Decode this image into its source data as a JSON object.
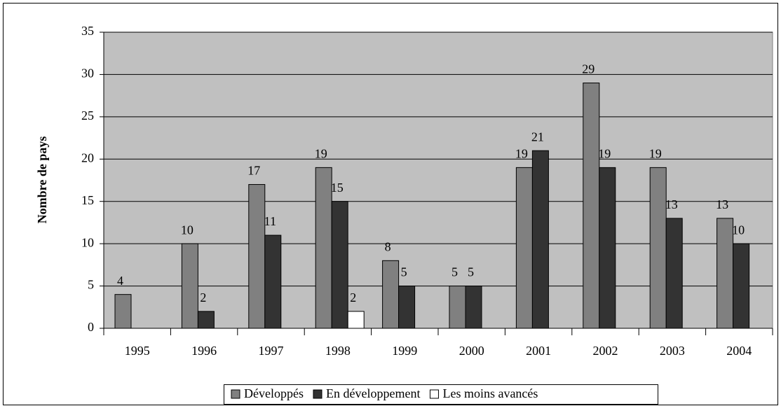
{
  "chart_data": {
    "type": "bar",
    "y_label": "Nombre de pays",
    "categories": [
      "1995",
      "1996",
      "1997",
      "1998",
      "1999",
      "2000",
      "2001",
      "2002",
      "2003",
      "2004"
    ],
    "series": [
      {
        "name": "Développés",
        "color": "#808080",
        "values": [
          4,
          10,
          17,
          19,
          8,
          5,
          19,
          29,
          19,
          13
        ]
      },
      {
        "name": "En développement",
        "color": "#333333",
        "values": [
          null,
          2,
          11,
          15,
          5,
          5,
          21,
          19,
          13,
          10
        ]
      },
      {
        "name": "Les moins avancés",
        "color": "#ffffff",
        "values": [
          null,
          null,
          null,
          2,
          null,
          null,
          null,
          null,
          null,
          null
        ]
      }
    ],
    "ylim": [
      0,
      35
    ],
    "yticks": [
      0,
      5,
      10,
      15,
      20,
      25,
      30,
      35
    ],
    "grid": true,
    "legend": "bottom"
  }
}
